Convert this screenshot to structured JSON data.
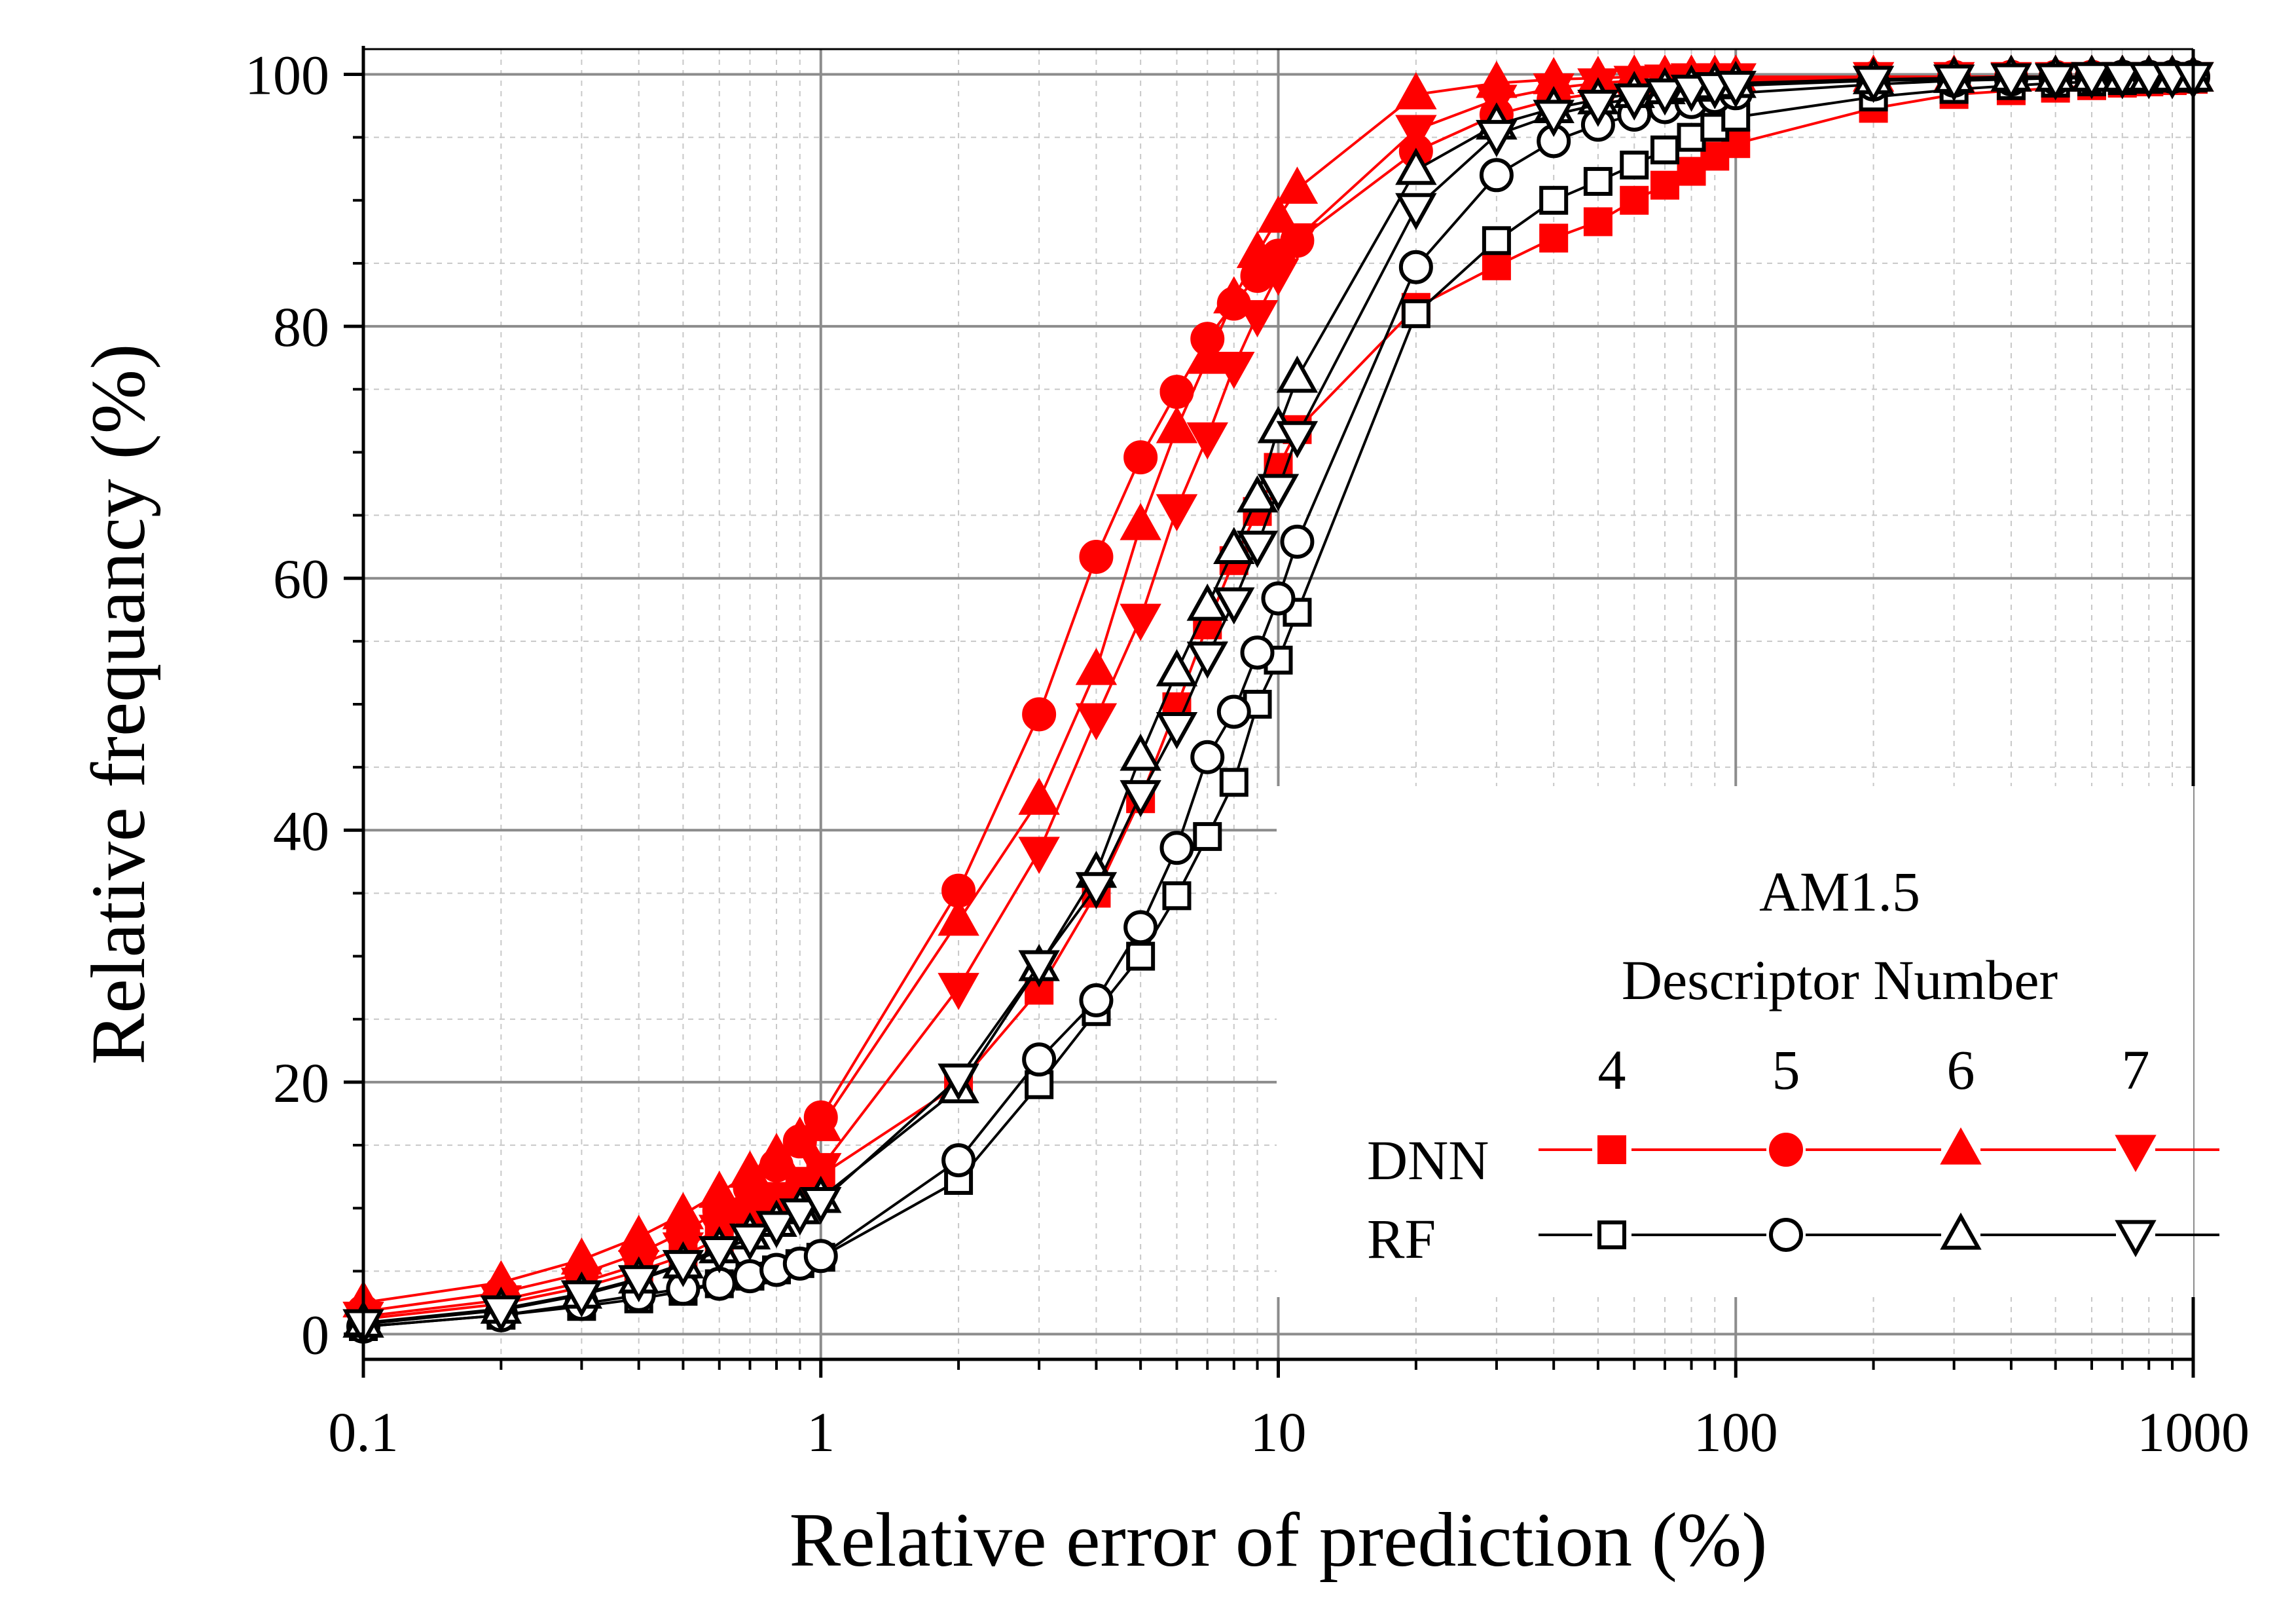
{
  "chart_data": {
    "type": "line",
    "title": "",
    "xlabel": "Relative error of prediction (%)",
    "ylabel": "Relative frequancy (%)",
    "xscale": "log",
    "xlim": [
      0.1,
      1000
    ],
    "ylim": [
      -2,
      102
    ],
    "grid": true,
    "xticks": [
      0.1,
      1,
      10,
      100,
      1000
    ],
    "xtick_labels": [
      "0.1",
      "1",
      "10",
      "100",
      "1000"
    ],
    "yticks": [
      0,
      20,
      40,
      60,
      80,
      100
    ],
    "ytick_labels": [
      "0",
      "20",
      "40",
      "60",
      "80",
      "100"
    ],
    "legend": {
      "placement": "bottom-right",
      "title_lines": [
        "AM1.5",
        "Descriptor Number"
      ],
      "columns": [
        "4",
        "5",
        "6",
        "7"
      ],
      "rows": [
        "DNN",
        "RF"
      ]
    },
    "x": [
      0.1,
      0.2,
      0.3,
      0.4,
      0.5,
      0.6,
      0.7,
      0.8,
      0.9,
      1,
      2,
      3,
      4,
      5,
      6,
      7,
      8,
      9,
      10,
      11,
      20,
      30,
      40,
      50,
      60,
      70,
      80,
      90,
      100,
      200,
      300,
      400,
      500,
      600,
      700,
      800,
      900,
      1000
    ],
    "series": [
      {
        "name": "DNN 4",
        "model": "DNN",
        "descriptor": "4",
        "marker": "square",
        "filled": true,
        "color": "#ff0000",
        "values": [
          1.2,
          2.4,
          3.7,
          5.0,
          6.2,
          7.6,
          8.9,
          10.1,
          11.3,
          12.6,
          19.8,
          27.3,
          35.0,
          42.5,
          49.8,
          56.3,
          61.4,
          65.3,
          68.8,
          71.8,
          81.5,
          84.8,
          87.0,
          88.3,
          90.0,
          91.2,
          92.3,
          93.5,
          94.5,
          97.3,
          98.4,
          98.7,
          98.9,
          99.1,
          99.3,
          99.4,
          99.5,
          99.6
        ]
      },
      {
        "name": "DNN 5",
        "model": "DNN",
        "descriptor": "5",
        "marker": "circle",
        "filled": true,
        "color": "#ff0000",
        "values": [
          1.8,
          3.3,
          4.8,
          6.4,
          8.1,
          9.8,
          11.6,
          13.4,
          15.3,
          17.2,
          35.2,
          49.2,
          61.7,
          69.6,
          74.8,
          79.0,
          81.8,
          84.0,
          85.6,
          86.8,
          93.9,
          96.8,
          98.0,
          98.5,
          98.9,
          99.1,
          99.3,
          99.4,
          99.5,
          99.7,
          99.8,
          99.8,
          99.8,
          99.8,
          99.8,
          99.8,
          99.8,
          99.8
        ]
      },
      {
        "name": "DNN 6",
        "model": "DNN",
        "descriptor": "6",
        "marker": "triangle-up",
        "filled": true,
        "color": "#ff0000",
        "values": [
          2.5,
          4.1,
          5.9,
          7.7,
          9.5,
          11.2,
          12.8,
          14.2,
          15.5,
          16.5,
          32.8,
          42.4,
          52.7,
          64.2,
          71.9,
          77.4,
          82.2,
          85.8,
          88.6,
          90.9,
          98.4,
          99.3,
          99.6,
          99.7,
          99.8,
          99.8,
          99.8,
          99.8,
          99.8,
          99.8,
          99.8,
          99.8,
          99.8,
          99.8,
          99.8,
          99.8,
          99.8,
          99.8
        ]
      },
      {
        "name": "DNN 7",
        "model": "DNN",
        "descriptor": "7",
        "marker": "triangle-down",
        "filled": true,
        "color": "#ff0000",
        "values": [
          1.4,
          2.7,
          4.1,
          5.5,
          6.9,
          8.3,
          9.6,
          10.9,
          12.1,
          13.2,
          27.5,
          38.3,
          48.9,
          56.8,
          65.5,
          71.2,
          76.8,
          80.9,
          84.2,
          87.0,
          95.6,
          98.0,
          98.9,
          99.3,
          99.5,
          99.6,
          99.7,
          99.7,
          99.7,
          99.8,
          99.8,
          99.8,
          99.8,
          99.8,
          99.8,
          99.8,
          99.8,
          99.8
        ]
      },
      {
        "name": "RF 4",
        "model": "RF",
        "descriptor": "4",
        "marker": "square",
        "filled": false,
        "color": "#000000",
        "values": [
          0.6,
          1.5,
          2.2,
          2.8,
          3.4,
          4.0,
          4.6,
          5.1,
          5.6,
          6.1,
          12.2,
          19.8,
          25.6,
          30.0,
          34.8,
          39.5,
          43.8,
          50.0,
          53.5,
          57.3,
          81.0,
          86.8,
          90.0,
          91.5,
          92.8,
          94.0,
          95.0,
          95.8,
          96.6,
          98.2,
          98.8,
          99.1,
          99.3,
          99.4,
          99.5,
          99.6,
          99.7,
          99.7
        ]
      },
      {
        "name": "RF 5",
        "model": "RF",
        "descriptor": "5",
        "marker": "circle",
        "filled": false,
        "color": "#000000",
        "values": [
          0.6,
          1.5,
          2.4,
          3.1,
          3.6,
          4.0,
          4.6,
          5.1,
          5.6,
          6.2,
          13.8,
          21.8,
          26.5,
          32.3,
          38.6,
          45.8,
          49.4,
          54.1,
          58.4,
          62.9,
          84.7,
          92.0,
          94.7,
          96.0,
          96.8,
          97.4,
          97.8,
          98.2,
          98.5,
          99.2,
          99.5,
          99.6,
          99.7,
          99.7,
          99.8,
          99.8,
          99.8,
          99.8
        ]
      },
      {
        "name": "RF 6",
        "model": "RF",
        "descriptor": "6",
        "marker": "triangle-up",
        "filled": false,
        "color": "#000000",
        "values": [
          0.9,
          2.0,
          3.2,
          4.4,
          5.6,
          6.8,
          7.9,
          8.9,
          9.9,
          10.8,
          19.5,
          29.2,
          36.6,
          45.9,
          52.6,
          57.8,
          62.3,
          66.4,
          71.9,
          75.9,
          92.4,
          96.0,
          97.3,
          98.0,
          98.5,
          98.8,
          99.0,
          99.2,
          99.3,
          99.6,
          99.7,
          99.8,
          99.8,
          99.8,
          99.8,
          99.8,
          99.8,
          99.8
        ]
      },
      {
        "name": "RF 7",
        "model": "RF",
        "descriptor": "7",
        "marker": "triangle-down",
        "filled": false,
        "color": "#000000",
        "values": [
          0.8,
          1.9,
          3.1,
          4.3,
          5.5,
          6.6,
          7.6,
          8.6,
          9.6,
          10.5,
          20.3,
          29.3,
          35.5,
          42.8,
          48.2,
          53.8,
          58.1,
          62.6,
          67.1,
          71.3,
          89.4,
          95.2,
          96.8,
          97.6,
          98.1,
          98.5,
          98.8,
          99.0,
          99.1,
          99.5,
          99.6,
          99.7,
          99.7,
          99.8,
          99.8,
          99.8,
          99.8,
          99.8
        ]
      }
    ]
  }
}
